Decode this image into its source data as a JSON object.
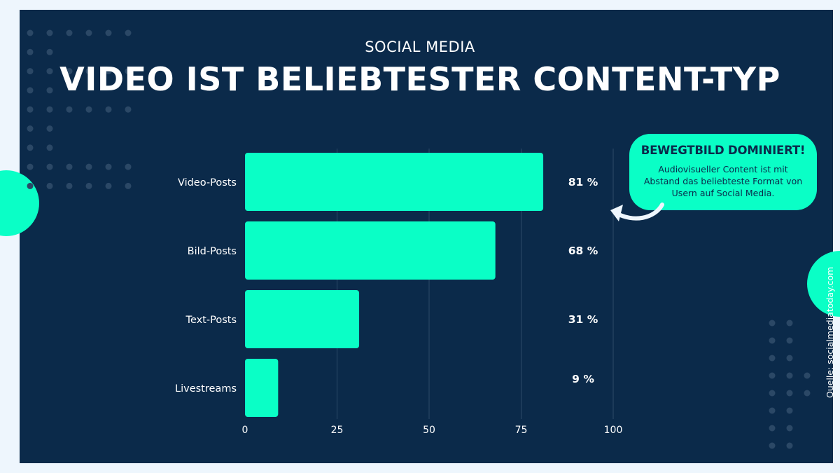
{
  "header": {
    "subtitle": "SOCIAL MEDIA",
    "title": "VIDEO IST BELIEBTESTER CONTENT-TYP"
  },
  "callout": {
    "title": "BEWEGTBILD DOMINIERT!",
    "text": "Audiovisueller Content ist mit Abstand das beliebteste Format von Usern auf Social Media."
  },
  "source": "Quelle: socialmediatoday.com",
  "colors": {
    "background": "#0b2a4a",
    "accent": "#0affc6",
    "text": "#ffffff"
  },
  "chart_data": {
    "type": "bar",
    "orientation": "horizontal",
    "categories": [
      "Video-Posts",
      "Bild-Posts",
      "Text-Posts",
      "Livestreams"
    ],
    "values": [
      81,
      68,
      31,
      9
    ],
    "value_labels": [
      "81 %",
      "68 %",
      "31 %",
      "9 %"
    ],
    "xlim": [
      0,
      100
    ],
    "xticks": [
      0,
      25,
      50,
      75,
      100
    ],
    "xtick_labels": [
      "0",
      "25",
      "50",
      "75",
      "100"
    ],
    "grid": true
  }
}
